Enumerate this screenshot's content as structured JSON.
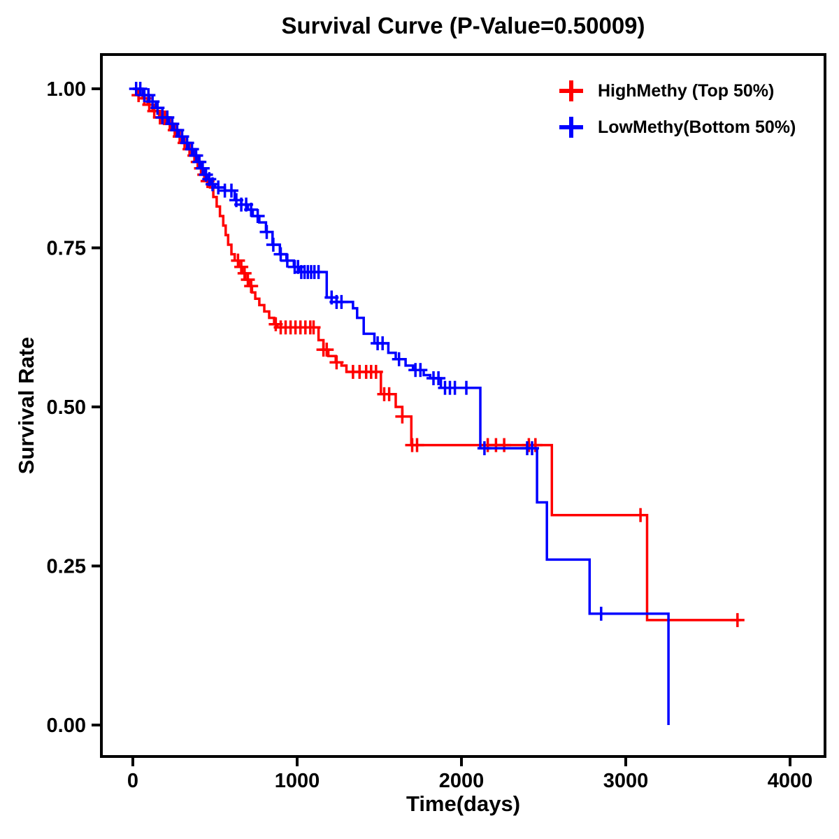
{
  "chart_data": {
    "type": "line",
    "subtype": "kaplan-meier-step-survival",
    "title": "Survival Curve (P-Value=0.50009)",
    "xlabel": "Time(days)",
    "ylabel": "Survival Rate",
    "x_ticks": [
      0,
      1000,
      2000,
      3000,
      4000
    ],
    "x_tick_labels": [
      "0",
      "1000",
      "2000",
      "3000",
      "4000"
    ],
    "y_ticks": [
      0.0,
      0.25,
      0.5,
      0.75,
      1.0
    ],
    "y_tick_labels": [
      "0.00",
      "0.25",
      "0.50",
      "0.75",
      "1.00"
    ],
    "xlim": [
      -190,
      4210
    ],
    "ylim": [
      -0.05,
      1.055
    ],
    "grid": false,
    "legend_position": "top-right",
    "series": [
      {
        "name": "HighMethy (Top 50%)",
        "color": "#ff0000",
        "steps": [
          [
            0,
            1.0
          ],
          [
            30,
            0.99
          ],
          [
            60,
            0.985
          ],
          [
            90,
            0.975
          ],
          [
            120,
            0.965
          ],
          [
            160,
            0.955
          ],
          [
            200,
            0.945
          ],
          [
            230,
            0.935
          ],
          [
            260,
            0.925
          ],
          [
            300,
            0.915
          ],
          [
            330,
            0.905
          ],
          [
            360,
            0.895
          ],
          [
            390,
            0.885
          ],
          [
            410,
            0.875
          ],
          [
            430,
            0.865
          ],
          [
            450,
            0.855
          ],
          [
            470,
            0.845
          ],
          [
            490,
            0.83
          ],
          [
            510,
            0.815
          ],
          [
            530,
            0.8
          ],
          [
            550,
            0.785
          ],
          [
            565,
            0.77
          ],
          [
            580,
            0.755
          ],
          [
            600,
            0.74
          ],
          [
            620,
            0.73
          ],
          [
            645,
            0.72
          ],
          [
            665,
            0.71
          ],
          [
            685,
            0.7
          ],
          [
            705,
            0.69
          ],
          [
            725,
            0.68
          ],
          [
            745,
            0.67
          ],
          [
            770,
            0.66
          ],
          [
            800,
            0.65
          ],
          [
            830,
            0.64
          ],
          [
            860,
            0.63
          ],
          [
            880,
            0.625
          ],
          [
            1130,
            0.605
          ],
          [
            1160,
            0.59
          ],
          [
            1190,
            0.58
          ],
          [
            1235,
            0.57
          ],
          [
            1270,
            0.565
          ],
          [
            1300,
            0.555
          ],
          [
            1510,
            0.52
          ],
          [
            1600,
            0.5
          ],
          [
            1640,
            0.485
          ],
          [
            1695,
            0.44
          ],
          [
            2550,
            0.33
          ],
          [
            3130,
            0.165
          ],
          [
            3700,
            0.165
          ]
        ],
        "censor_times": [
          35,
          70,
          100,
          130,
          165,
          195,
          225,
          255,
          285,
          315,
          345,
          375,
          395,
          415,
          435,
          455,
          640,
          660,
          680,
          700,
          720,
          870,
          900,
          930,
          960,
          990,
          1020,
          1050,
          1080,
          1100,
          1160,
          1180,
          1240,
          1340,
          1380,
          1420,
          1450,
          1480,
          1530,
          1560,
          1640,
          1700,
          1730,
          2160,
          2210,
          2260,
          2410,
          2450,
          3090,
          3680
        ]
      },
      {
        "name": "LowMethy(Bottom 50%)",
        "color": "#0000ff",
        "steps": [
          [
            0,
            1.0
          ],
          [
            60,
            0.99
          ],
          [
            100,
            0.98
          ],
          [
            140,
            0.97
          ],
          [
            180,
            0.955
          ],
          [
            220,
            0.945
          ],
          [
            250,
            0.935
          ],
          [
            280,
            0.925
          ],
          [
            310,
            0.915
          ],
          [
            340,
            0.905
          ],
          [
            370,
            0.895
          ],
          [
            400,
            0.885
          ],
          [
            420,
            0.875
          ],
          [
            440,
            0.865
          ],
          [
            460,
            0.858
          ],
          [
            480,
            0.85
          ],
          [
            500,
            0.845
          ],
          [
            560,
            0.84
          ],
          [
            620,
            0.825
          ],
          [
            660,
            0.818
          ],
          [
            700,
            0.81
          ],
          [
            730,
            0.8
          ],
          [
            770,
            0.79
          ],
          [
            810,
            0.775
          ],
          [
            850,
            0.755
          ],
          [
            895,
            0.74
          ],
          [
            935,
            0.73
          ],
          [
            980,
            0.72
          ],
          [
            1010,
            0.712
          ],
          [
            1180,
            0.672
          ],
          [
            1240,
            0.665
          ],
          [
            1340,
            0.655
          ],
          [
            1365,
            0.64
          ],
          [
            1405,
            0.615
          ],
          [
            1470,
            0.6
          ],
          [
            1555,
            0.585
          ],
          [
            1600,
            0.575
          ],
          [
            1660,
            0.565
          ],
          [
            1705,
            0.558
          ],
          [
            1770,
            0.55
          ],
          [
            1810,
            0.545
          ],
          [
            1875,
            0.53
          ],
          [
            2115,
            0.435
          ],
          [
            2460,
            0.35
          ],
          [
            2520,
            0.26
          ],
          [
            2780,
            0.175
          ],
          [
            3255,
            0.175
          ],
          [
            3260,
            0.0
          ]
        ],
        "censor_times": [
          20,
          45,
          70,
          95,
          120,
          150,
          180,
          210,
          240,
          270,
          300,
          330,
          360,
          385,
          405,
          425,
          445,
          465,
          485,
          520,
          560,
          600,
          630,
          660,
          690,
          720,
          760,
          815,
          855,
          900,
          940,
          985,
          1005,
          1025,
          1045,
          1065,
          1085,
          1105,
          1130,
          1210,
          1240,
          1270,
          1490,
          1520,
          1620,
          1720,
          1750,
          1830,
          1860,
          1900,
          1930,
          1960,
          2030,
          2140,
          2400,
          2430,
          2850
        ]
      }
    ]
  }
}
